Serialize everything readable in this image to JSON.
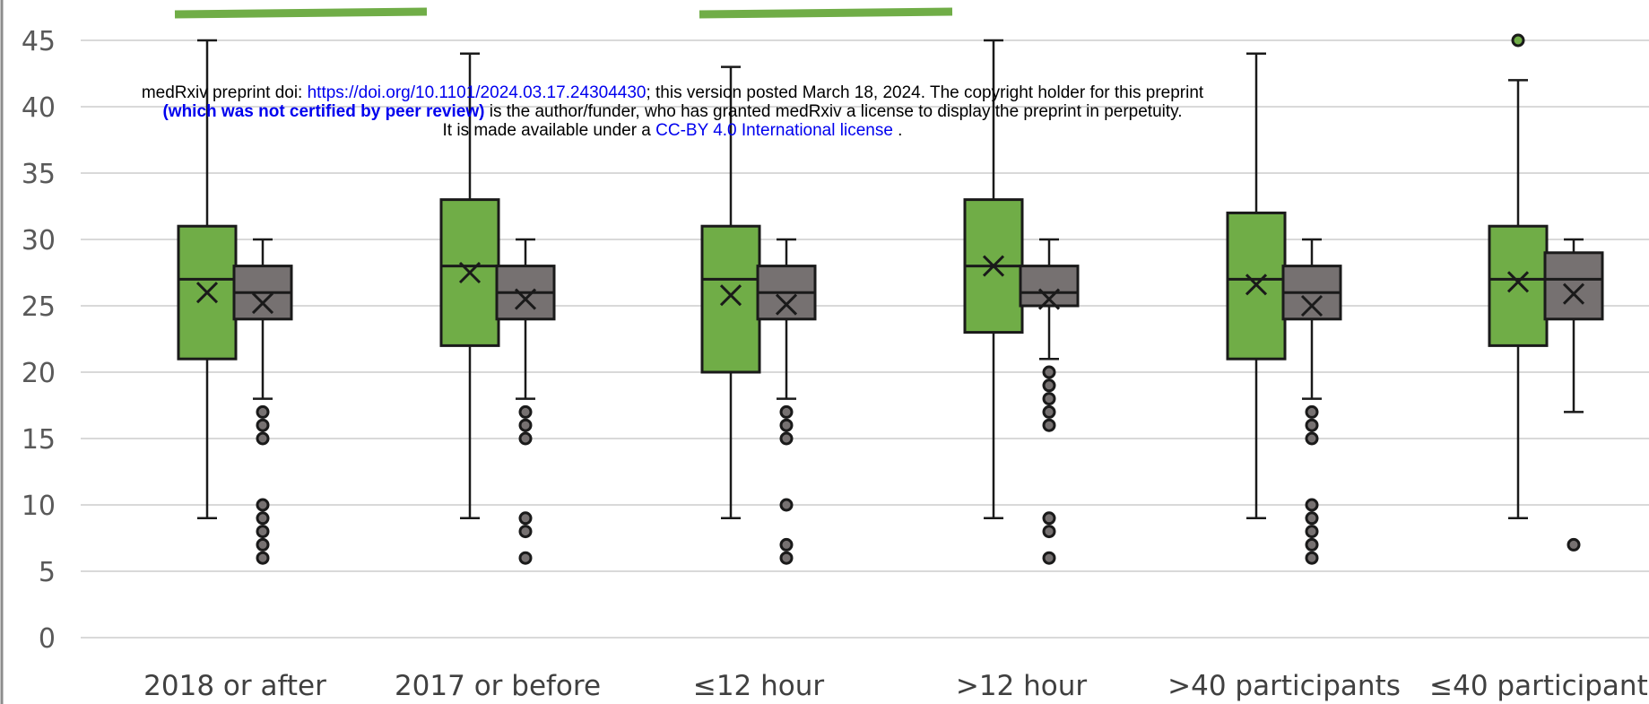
{
  "notice": {
    "line1_prefix": "medRxiv preprint doi: ",
    "line1_link": "https://doi.org/10.1101/2024.03.17.24304430",
    "line1_suffix": "; this version posted March 18, 2024. The copyright holder for this preprint",
    "line2_bold": "(which was not certified by peer review)",
    "line2_suffix": " is the author/funder, who has granted medRxiv a license to display the preprint in perpetuity.",
    "line3_prefix": "It is made available under a ",
    "line3_link": "CC-BY 4.0 International license",
    "line3_suffix": " ."
  },
  "colors": {
    "green": "#70ad47",
    "gray": "#767171",
    "edge": "#1a1a1a",
    "grid": "#d9d9d9"
  },
  "chart_data": {
    "type": "box",
    "title": "",
    "xlabel": "",
    "ylabel": "",
    "ylim": [
      0,
      45
    ],
    "yticks": [
      0,
      5,
      10,
      15,
      20,
      25,
      30,
      35,
      40,
      45
    ],
    "grid": true,
    "categories": [
      "2018 or after",
      "2017 or before",
      "≤12 hour",
      ">12 hour",
      ">40 participants",
      "≤40 participants"
    ],
    "series": [
      {
        "color": "#70ad47",
        "boxes": [
          {
            "min": 9,
            "q1": 21,
            "median": 27,
            "q3": 31,
            "max": 45,
            "mean": 26,
            "outliers": []
          },
          {
            "min": 9,
            "q1": 22,
            "median": 28,
            "q3": 33,
            "max": 44,
            "mean": 27.5,
            "outliers": []
          },
          {
            "min": 9,
            "q1": 20,
            "median": 27,
            "q3": 31,
            "max": 43,
            "mean": 25.8,
            "outliers": []
          },
          {
            "min": 9,
            "q1": 23,
            "median": 28,
            "q3": 33,
            "max": 45,
            "mean": 28,
            "outliers": []
          },
          {
            "min": 9,
            "q1": 21,
            "median": 27,
            "q3": 32,
            "max": 44,
            "mean": 26.6,
            "outliers": []
          },
          {
            "min": 9,
            "q1": 22,
            "median": 27,
            "q3": 31,
            "max": 42,
            "mean": 26.8,
            "outliers": [
              45
            ]
          }
        ]
      },
      {
        "color": "#767171",
        "boxes": [
          {
            "min": 18,
            "q1": 24,
            "median": 26,
            "q3": 28,
            "max": 30,
            "mean": 25.2,
            "outliers": [
              17,
              16,
              15,
              10,
              9,
              8,
              7,
              6
            ]
          },
          {
            "min": 18,
            "q1": 24,
            "median": 26,
            "q3": 28,
            "max": 30,
            "mean": 25.5,
            "outliers": [
              17,
              16,
              15,
              9,
              8,
              6
            ]
          },
          {
            "min": 18,
            "q1": 24,
            "median": 26,
            "q3": 28,
            "max": 30,
            "mean": 25.1,
            "outliers": [
              17,
              16,
              15,
              10,
              7,
              6
            ]
          },
          {
            "min": 21,
            "q1": 25,
            "median": 26,
            "q3": 28,
            "max": 30,
            "mean": 25.5,
            "outliers": [
              20,
              19,
              18,
              17,
              16,
              9,
              8,
              6
            ]
          },
          {
            "min": 18,
            "q1": 24,
            "median": 26,
            "q3": 28,
            "max": 30,
            "mean": 25,
            "outliers": [
              17,
              16,
              15,
              10,
              9,
              8,
              7,
              6
            ]
          },
          {
            "min": 17,
            "q1": 24,
            "median": 27,
            "q3": 29,
            "max": 30,
            "mean": 25.9,
            "outliers": [
              7
            ]
          }
        ]
      }
    ]
  }
}
